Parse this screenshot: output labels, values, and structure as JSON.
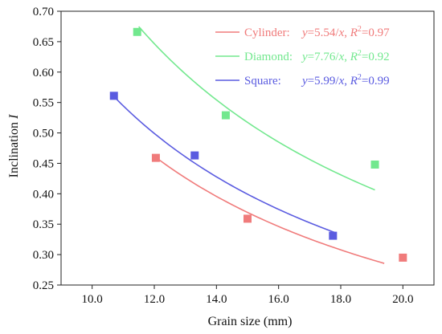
{
  "chart_data": {
    "type": "scatter",
    "xlabel": "Grain size (mm)",
    "ylabel_prefix": "Inclination ",
    "ylabel_symbol": "I",
    "xlim": [
      9.0,
      21.0
    ],
    "ylim": [
      0.25,
      0.7
    ],
    "xticks": [
      10.0,
      12.0,
      14.0,
      16.0,
      18.0,
      20.0
    ],
    "xtick_labels": [
      "10.0",
      "12.0",
      "14.0",
      "16.0",
      "18.0",
      "20.0"
    ],
    "yticks": [
      0.25,
      0.3,
      0.35,
      0.4,
      0.45,
      0.5,
      0.55,
      0.6,
      0.65,
      0.7
    ],
    "ytick_labels": [
      "0.25",
      "0.30",
      "0.35",
      "0.40",
      "0.45",
      "0.50",
      "0.55",
      "0.60",
      "0.65",
      "0.70"
    ],
    "grid": false,
    "legend_position": "top-right",
    "series": [
      {
        "name": "Cylinder:",
        "equation": "y=5.54/x, R2=0.97",
        "eq_y": "y",
        "eq_mid": "=5.54/",
        "eq_x": "x",
        "eq_sep": ", ",
        "eq_R": "R",
        "eq_sup": "2",
        "eq_val": "=0.97",
        "color": "#f07b7b",
        "k": 5.54,
        "fit_range": [
          12.0,
          19.4
        ],
        "points": [
          {
            "x": 12.05,
            "y": 0.459
          },
          {
            "x": 15.0,
            "y": 0.359
          },
          {
            "x": 20.0,
            "y": 0.295
          }
        ]
      },
      {
        "name": "Diamond:",
        "equation": "y=7.76/x, R2=0.92",
        "eq_y": "y",
        "eq_mid": "=7.76/",
        "eq_x": "x",
        "eq_sep": ", ",
        "eq_R": "R",
        "eq_sup": "2",
        "eq_val": "=0.92",
        "color": "#72e88e",
        "k": 7.76,
        "fit_range": [
          11.5,
          19.1
        ],
        "points": [
          {
            "x": 11.45,
            "y": 0.666
          },
          {
            "x": 14.3,
            "y": 0.529
          },
          {
            "x": 19.1,
            "y": 0.448
          }
        ]
      },
      {
        "name": "Square:",
        "equation": "y=5.99/x, R2=0.99",
        "eq_y": "y",
        "eq_mid": "=5.99/",
        "eq_x": "x",
        "eq_sep": ", ",
        "eq_R": "R",
        "eq_sup": "2",
        "eq_val": "=0.99",
        "color": "#5a5be0",
        "k": 5.99,
        "fit_range": [
          10.7,
          17.8
        ],
        "points": [
          {
            "x": 10.7,
            "y": 0.561
          },
          {
            "x": 13.3,
            "y": 0.463
          },
          {
            "x": 17.75,
            "y": 0.331
          }
        ]
      }
    ]
  }
}
